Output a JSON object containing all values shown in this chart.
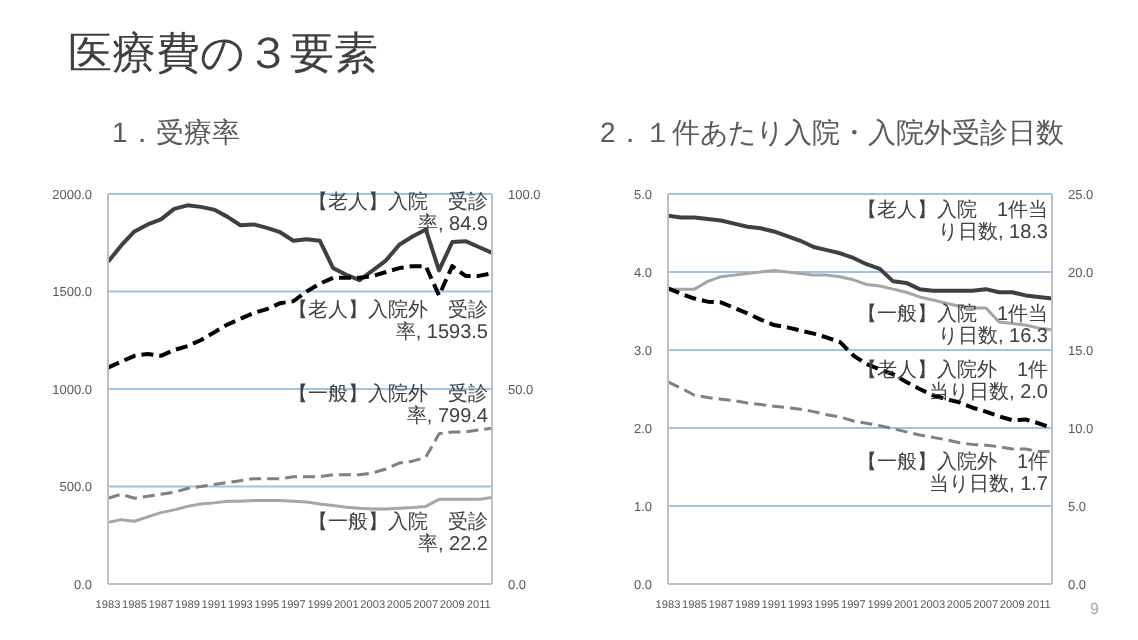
{
  "chart_data": [
    {
      "type": "line",
      "title": "医療費の３要素",
      "subtitle": "1．受療率",
      "categories": [
        "1983",
        null,
        "1985",
        null,
        "1987",
        null,
        "1989",
        null,
        "1991",
        null,
        "1993",
        null,
        "1995",
        null,
        "1997",
        null,
        "1999",
        null,
        "2001",
        null,
        "2003",
        null,
        "2005",
        null,
        "2007",
        null,
        "2009",
        null,
        "2011",
        null
      ],
      "series": [
        {
          "name": "【老人】入院　受診率,",
          "color": "#404040",
          "axis": "y2",
          "line_style": "solid",
          "values": [
            82.6,
            86.8,
            90.4,
            92.2,
            93.5,
            96.2,
            97.1,
            96.7,
            96,
            94.2,
            92,
            92.2,
            91.3,
            90.2,
            88,
            88.4,
            88,
            81,
            79.3,
            77.9,
            80.4,
            83,
            87,
            89.1,
            90.9,
            80.4,
            87.7,
            87.9,
            86.4,
            84.9
          ],
          "value_labels": [
            null,
            null,
            null,
            null,
            null,
            null,
            null,
            null,
            null,
            null,
            null,
            null,
            null,
            null,
            null,
            null,
            null,
            null,
            null,
            null,
            null,
            null,
            null,
            null,
            null,
            null,
            null,
            null,
            null,
            "84.9"
          ]
        },
        {
          "name": "【老人】入院外　受診率,",
          "color": "#000000",
          "line_style": "dashed",
          "values": [
            1110,
            1140,
            1170,
            1180,
            1170,
            1200,
            1220,
            1250,
            1290,
            1330,
            1360,
            1390,
            1410,
            1440,
            1450,
            1500,
            1540,
            1570,
            1570,
            1570,
            1580,
            1600,
            1620,
            1630,
            1630,
            1480,
            1630,
            1580,
            1580,
            1593.5
          ],
          "value_labels": [
            null,
            null,
            null,
            null,
            null,
            null,
            null,
            null,
            null,
            null,
            null,
            null,
            null,
            null,
            null,
            null,
            null,
            null,
            null,
            null,
            null,
            null,
            null,
            null,
            null,
            null,
            null,
            null,
            null,
            "1593.5"
          ]
        },
        {
          "name": "【一般】入院外　受診率,",
          "color": "#808080",
          "line_style": "dashed",
          "values": [
            440,
            460,
            440,
            450,
            460,
            470,
            490,
            500,
            510,
            520,
            530,
            540,
            540,
            540,
            550,
            550,
            550,
            560,
            560,
            560,
            570,
            590,
            620,
            630,
            650,
            770,
            780,
            780,
            790,
            799.4
          ],
          "value_labels": [
            null,
            null,
            null,
            null,
            null,
            null,
            null,
            null,
            null,
            null,
            null,
            null,
            null,
            null,
            null,
            null,
            null,
            null,
            null,
            null,
            null,
            null,
            null,
            null,
            null,
            null,
            null,
            null,
            null,
            "799.4"
          ]
        },
        {
          "name": "【一般】入院　受診率,",
          "color": "#a6a6a6",
          "axis": "y2",
          "line_style": "solid",
          "values": [
            15.8,
            16.5,
            16.1,
            17.2,
            18.3,
            19,
            19.9,
            20.5,
            20.8,
            21.2,
            21.2,
            21.4,
            21.4,
            21.4,
            21.2,
            21,
            20.5,
            20.1,
            19.7,
            19.4,
            19.2,
            19.2,
            19.4,
            19.6,
            19.9,
            21.7,
            21.7,
            21.7,
            21.7,
            22.2
          ],
          "value_labels": [
            null,
            null,
            null,
            null,
            null,
            null,
            null,
            null,
            null,
            null,
            null,
            null,
            null,
            null,
            null,
            null,
            null,
            null,
            null,
            null,
            null,
            null,
            null,
            null,
            null,
            null,
            null,
            null,
            null,
            "22.2"
          ]
        }
      ],
      "ylim": [
        0,
        2000
      ],
      "yticks": [
        {
          "value": 0,
          "label": "0.0"
        },
        {
          "value": 500,
          "label": "500.0"
        },
        {
          "value": 1000,
          "label": "1000.0"
        },
        {
          "value": 1500,
          "label": "1500.0"
        },
        {
          "value": 2000,
          "label": "2000.0"
        }
      ],
      "y2lim": [
        0,
        100
      ],
      "y2ticks": [
        {
          "value": 0,
          "label": "0.0"
        },
        {
          "value": 50,
          "label": "50.0"
        },
        {
          "value": 100,
          "label": "100.0"
        }
      ],
      "grid": "y",
      "marker": "none",
      "legend": false
    },
    {
      "type": "line",
      "title": "2．１件あたり入院・入院外受診日数",
      "categories": [
        "1983",
        null,
        "1985",
        null,
        "1987",
        null,
        "1989",
        null,
        "1991",
        null,
        "1993",
        null,
        "1995",
        null,
        "1997",
        null,
        "1999",
        null,
        "2001",
        null,
        "2003",
        null,
        "2005",
        null,
        "2007",
        null,
        "2009",
        null,
        "2011",
        null
      ],
      "series": [
        {
          "name": "【老人】入院　1件当り日数,",
          "color": "#404040",
          "axis": "y2",
          "line_style": "solid",
          "values": [
            23.6,
            23.5,
            23.5,
            23.4,
            23.3,
            23.1,
            22.9,
            22.8,
            22.6,
            22.3,
            22,
            21.6,
            21.4,
            21.2,
            20.9,
            20.5,
            20.2,
            19.4,
            19.3,
            18.9,
            18.8,
            18.8,
            18.8,
            18.8,
            18.9,
            18.7,
            18.7,
            18.5,
            18.4,
            18.3
          ],
          "value_labels": [
            null,
            null,
            null,
            null,
            null,
            null,
            null,
            null,
            null,
            null,
            null,
            null,
            null,
            null,
            null,
            null,
            null,
            null,
            null,
            null,
            null,
            null,
            null,
            null,
            null,
            null,
            null,
            null,
            null,
            "18.3"
          ]
        },
        {
          "name": "【一般】入院　1件当り日数,",
          "color": "#a6a6a6",
          "axis": "y2",
          "line_style": "solid",
          "values": [
            18.9,
            18.9,
            18.9,
            19.4,
            19.7,
            19.8,
            19.9,
            20,
            20.1,
            20,
            19.9,
            19.8,
            19.8,
            19.7,
            19.5,
            19.2,
            19.1,
            18.9,
            18.7,
            18.4,
            18.2,
            18,
            17.8,
            17.7,
            17.7,
            16.8,
            16.7,
            16.6,
            16.4,
            16.3
          ],
          "value_labels": [
            null,
            null,
            null,
            null,
            null,
            null,
            null,
            null,
            null,
            null,
            null,
            null,
            null,
            null,
            null,
            null,
            null,
            null,
            null,
            null,
            null,
            null,
            null,
            null,
            null,
            null,
            null,
            null,
            null,
            "16.3"
          ]
        },
        {
          "name": "【老人】入院外　1件当り日数,",
          "color": "#000000",
          "line_style": "dashed",
          "values": [
            3.79,
            3.72,
            3.66,
            3.62,
            3.61,
            3.54,
            3.47,
            3.39,
            3.32,
            3.29,
            3.25,
            3.21,
            3.16,
            3.1,
            2.93,
            2.82,
            2.75,
            2.69,
            2.59,
            2.5,
            2.42,
            2.37,
            2.33,
            2.26,
            2.21,
            2.15,
            2.1,
            2.11,
            2.06,
            2.0
          ],
          "value_labels": [
            null,
            null,
            null,
            null,
            null,
            null,
            null,
            null,
            null,
            null,
            null,
            null,
            null,
            null,
            null,
            null,
            null,
            null,
            null,
            null,
            null,
            null,
            null,
            null,
            null,
            null,
            null,
            null,
            null,
            "2.0"
          ]
        },
        {
          "name": "【一般】入院外　1件当り日数,",
          "color": "#808080",
          "line_style": "dashed",
          "values": [
            2.59,
            2.51,
            2.42,
            2.39,
            2.37,
            2.35,
            2.32,
            2.3,
            2.28,
            2.26,
            2.24,
            2.21,
            2.17,
            2.14,
            2.09,
            2.06,
            2.03,
            1.99,
            1.95,
            1.91,
            1.88,
            1.85,
            1.81,
            1.79,
            1.78,
            1.76,
            1.73,
            1.73,
            1.7,
            1.7
          ],
          "value_labels": [
            null,
            null,
            null,
            null,
            null,
            null,
            null,
            null,
            null,
            null,
            null,
            null,
            null,
            null,
            null,
            null,
            null,
            null,
            null,
            null,
            null,
            null,
            null,
            null,
            null,
            null,
            null,
            null,
            null,
            "1.7"
          ]
        }
      ],
      "ylim": [
        0,
        5
      ],
      "yticks": [
        {
          "value": 0,
          "label": "0.0"
        },
        {
          "value": 1,
          "label": "1.0"
        },
        {
          "value": 2,
          "label": "2.0"
        },
        {
          "value": 3,
          "label": "3.0"
        },
        {
          "value": 4,
          "label": "4.0"
        },
        {
          "value": 5,
          "label": "5.0"
        }
      ],
      "y2lim": [
        0,
        25
      ],
      "y2ticks": [
        {
          "value": 0,
          "label": "0.0"
        },
        {
          "value": 5,
          "label": "5.0"
        },
        {
          "value": 10,
          "label": "10.0"
        },
        {
          "value": 15,
          "label": "15.0"
        },
        {
          "value": 20,
          "label": "20.0"
        },
        {
          "value": 25,
          "label": "25.0"
        }
      ],
      "grid": "y",
      "marker": "none",
      "legend": false,
      "annotations": [
        "9"
      ]
    }
  ]
}
